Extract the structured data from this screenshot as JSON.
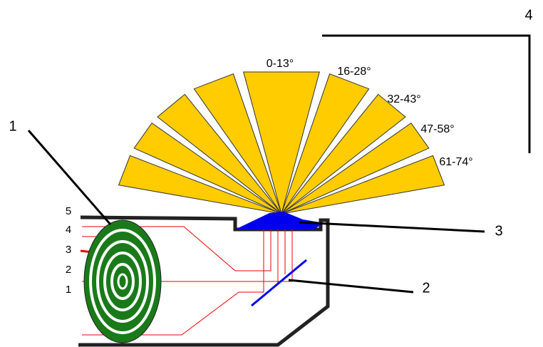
{
  "callouts": [
    "1",
    "2",
    "3",
    "4"
  ],
  "fan_labels": [
    "0-13°",
    "16-28°",
    "32-43°",
    "47-58°",
    "61-74°"
  ],
  "ring_labels": [
    "5",
    "4",
    "3",
    "2",
    "1"
  ]
}
